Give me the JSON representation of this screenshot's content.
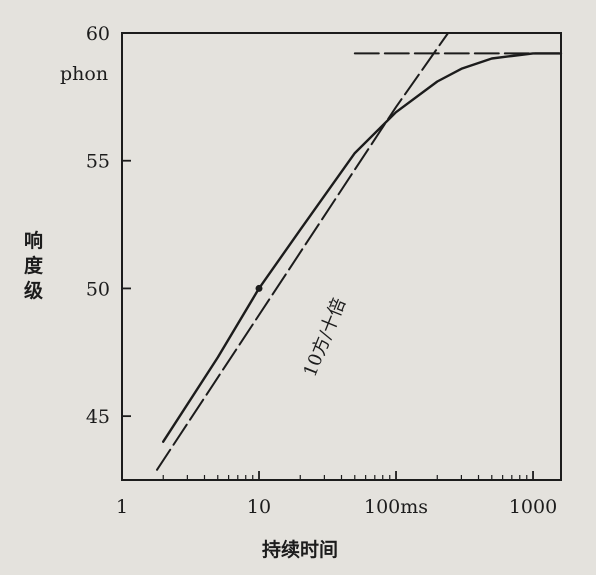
{
  "chart_data": {
    "type": "line",
    "title": "",
    "xlabel": "持续时间",
    "ylabel": "响度级",
    "y_unit": "phon",
    "x_scale": "log",
    "xlim": [
      1,
      1600
    ],
    "ylim": [
      42.5,
      60
    ],
    "x_ticks": [
      {
        "value": 1,
        "label": "1"
      },
      {
        "value": 10,
        "label": "10"
      },
      {
        "value": 100,
        "label": "100ms"
      },
      {
        "value": 1000,
        "label": "1000"
      }
    ],
    "y_ticks": [
      {
        "value": 45,
        "label": "45"
      },
      {
        "value": 50,
        "label": "50"
      },
      {
        "value": 55,
        "label": "55"
      },
      {
        "value": 60,
        "label": "60"
      }
    ],
    "series": [
      {
        "style": "solid",
        "x": [
          2,
          5,
          10,
          20,
          50,
          100,
          200,
          300,
          500,
          700,
          1000,
          1600
        ],
        "y": [
          44.0,
          47.3,
          50.0,
          52.3,
          55.3,
          56.9,
          58.1,
          58.6,
          59.0,
          59.1,
          59.2,
          59.2
        ],
        "marker_at": {
          "x": 10,
          "y": 50.0
        }
      },
      {
        "style": "dashed",
        "x": [
          1.8,
          100,
          240
        ],
        "y": [
          42.9,
          57.1,
          60.0
        ]
      },
      {
        "style": "dashed",
        "x": [
          50,
          1600
        ],
        "y": [
          59.2,
          59.2
        ]
      }
    ],
    "annotations": [
      {
        "text": "10方/十倍",
        "x": 33,
        "y": 48,
        "rotation_deg": -68
      }
    ],
    "grid": false,
    "legend": "none"
  }
}
